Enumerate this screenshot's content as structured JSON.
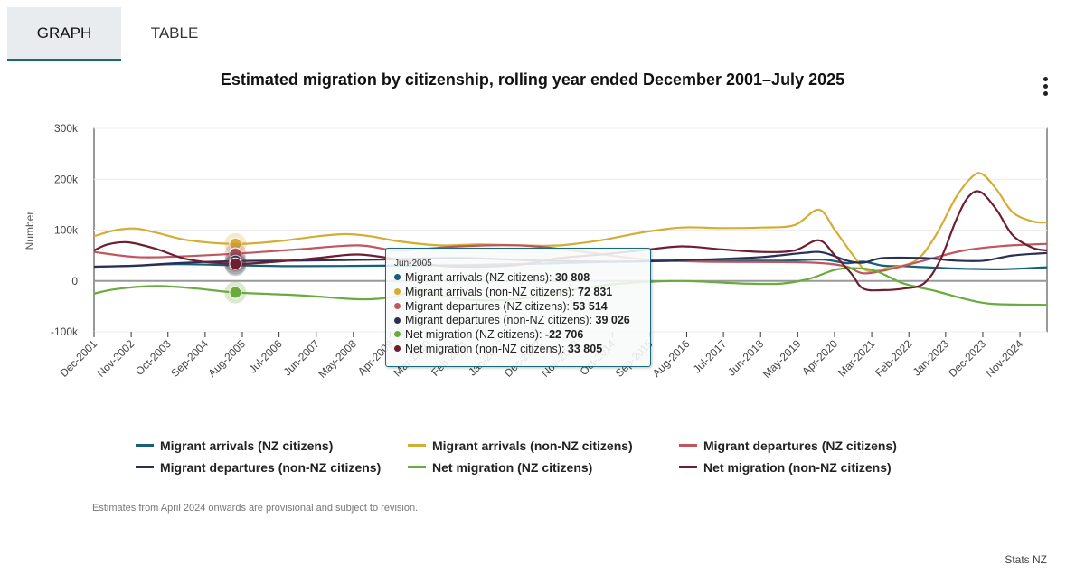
{
  "tabs": [
    {
      "label": "GRAPH",
      "active": true
    },
    {
      "label": "TABLE",
      "active": false
    }
  ],
  "menu_icon": "more-vertical-icon",
  "note": "Estimates from April 2024 onwards are provisional and subject to revision.",
  "credit": "Stats NZ",
  "tooltip": {
    "header": "Jun-2005",
    "rows": [
      {
        "label": "Migrant arrivals (NZ citizens): ",
        "value": "30 808",
        "color": "#17607a"
      },
      {
        "label": "Migrant arrivals (non-NZ citizens): ",
        "value": "72 831",
        "color": "#d4ad35"
      },
      {
        "label": "Migrant departures (NZ citizens): ",
        "value": "53 514",
        "color": "#c0565e"
      },
      {
        "label": "Migrant departures (non-NZ citizens): ",
        "value": "39 026",
        "color": "#2a2f55"
      },
      {
        "label": "Net migration (NZ citizens): ",
        "value": "-22 706",
        "color": "#6aab3d"
      },
      {
        "label": "Net migration (non-NZ citizens): ",
        "value": "33 805",
        "color": "#6e1e2e"
      }
    ]
  },
  "chart_data": {
    "type": "line",
    "title": "Estimated migration by citizenship, rolling year ended December 2001–July 2025",
    "xlabel": "",
    "ylabel": "Number",
    "ylim": [
      -100000,
      300000
    ],
    "yticks": [
      -100000,
      0,
      100000,
      200000,
      300000
    ],
    "ytick_labels": [
      "-100k",
      "0",
      "100k",
      "200k",
      "300k"
    ],
    "x_range": [
      2001.96,
      2025.55
    ],
    "xticks": [
      2001.96,
      2002.88,
      2003.79,
      2004.71,
      2005.63,
      2006.54,
      2007.46,
      2008.38,
      2009.29,
      2010.21,
      2011.13,
      2012.04,
      2012.96,
      2013.88,
      2014.79,
      2015.71,
      2016.63,
      2017.54,
      2018.46,
      2019.38,
      2020.29,
      2021.21,
      2022.13,
      2023.04,
      2023.96,
      2024.88
    ],
    "xtick_labels": [
      "Dec-2001",
      "Nov-2002",
      "Oct-2003",
      "Sep-2004",
      "Aug-2005",
      "Jul-2006",
      "Jun-2007",
      "May-2008",
      "Apr-2009",
      "Mar-2010",
      "Feb-2011",
      "Jan-2012",
      "Dec-2012",
      "Nov-2013",
      "Oct-2014",
      "Sep-2015",
      "Aug-2016",
      "Jul-2017",
      "Jun-2018",
      "May-2019",
      "Apr-2020",
      "Mar-2021",
      "Feb-2022",
      "Jan-2023",
      "Dec-2023",
      "Nov-2024"
    ],
    "highlight_x": 2005.46,
    "series": [
      {
        "name": "Migrant arrivals (NZ citizens)",
        "color": "#17607a",
        "x": [
          2001.96,
          2003,
          2004,
          2005.46,
          2007,
          2009,
          2011,
          2013,
          2015,
          2017,
          2019,
          2020,
          2020.6,
          2021.0,
          2021.5,
          2022,
          2022.8,
          2023.5,
          2024.5,
          2025.55
        ],
        "y": [
          28000,
          30000,
          33000,
          30808,
          29000,
          30000,
          31000,
          34000,
          38000,
          40000,
          40000,
          42000,
          35000,
          38000,
          30000,
          29000,
          26000,
          24000,
          23000,
          27000
        ]
      },
      {
        "name": "Migrant arrivals (non-NZ citizens)",
        "color": "#d4ad35",
        "x": [
          2001.96,
          2002.5,
          2003,
          2003.5,
          2004.3,
          2005.46,
          2006.5,
          2007.5,
          2008.2,
          2008.8,
          2009.5,
          2010.5,
          2011.5,
          2012.5,
          2013.5,
          2014.5,
          2015.5,
          2016.5,
          2017.5,
          2018.5,
          2019.3,
          2019.9,
          2020.3,
          2020.8,
          2021.1,
          2021.6,
          2022.3,
          2022.8,
          2023.3,
          2023.7,
          2023.95,
          2024.3,
          2024.7,
          2025.2,
          2025.55
        ],
        "y": [
          88000,
          100000,
          103000,
          95000,
          80000,
          72831,
          78000,
          88000,
          92000,
          88000,
          78000,
          70000,
          72000,
          70000,
          70000,
          80000,
          95000,
          105000,
          104000,
          105000,
          110000,
          140000,
          100000,
          45000,
          20000,
          25000,
          40000,
          90000,
          165000,
          205000,
          210000,
          180000,
          135000,
          117000,
          115000
        ]
      },
      {
        "name": "Migrant departures (NZ citizens)",
        "color": "#c0565e",
        "x": [
          2001.96,
          2003,
          2004,
          2005.46,
          2007,
          2008.5,
          2009.5,
          2011,
          2012.5,
          2014,
          2015.5,
          2017,
          2019,
          2020,
          2020.6,
          2021,
          2021.6,
          2022.5,
          2023.5,
          2024.5,
          2025.55
        ],
        "y": [
          57000,
          47000,
          48000,
          53514,
          62000,
          70000,
          60000,
          68000,
          70000,
          58000,
          43000,
          38000,
          37000,
          35000,
          28000,
          15000,
          22000,
          40000,
          60000,
          69000,
          73000
        ]
      },
      {
        "name": "Migrant departures (non-NZ citizens)",
        "color": "#2a2f55",
        "x": [
          2001.96,
          2003,
          2004,
          2005.46,
          2007,
          2009,
          2011,
          2013,
          2015,
          2017,
          2018.5,
          2019.5,
          2020,
          2020.6,
          2021,
          2021.5,
          2022.5,
          2023.3,
          2024,
          2024.7,
          2025.55
        ],
        "y": [
          28000,
          30000,
          35000,
          39026,
          40000,
          42000,
          45000,
          40000,
          38000,
          42000,
          47000,
          55000,
          56000,
          40000,
          36000,
          45000,
          45000,
          40000,
          40000,
          50000,
          55000
        ]
      },
      {
        "name": "Net migration (NZ citizens)",
        "color": "#6aab3d",
        "x": [
          2001.96,
          2002.5,
          2003.5,
          2004.5,
          2005.46,
          2007,
          2008.5,
          2009.3,
          2010,
          2011,
          2012,
          2013,
          2014,
          2015,
          2016.5,
          2018,
          2019,
          2019.7,
          2020.3,
          2020.8,
          2021.3,
          2022,
          2022.8,
          2023.5,
          2024.2,
          2025.55
        ],
        "y": [
          -25000,
          -16000,
          -10000,
          -15000,
          -22706,
          -28000,
          -36000,
          -32000,
          -20000,
          -35000,
          -38000,
          -30000,
          -15000,
          -5000,
          0,
          -5000,
          -5000,
          5000,
          22000,
          25000,
          20000,
          -5000,
          -20000,
          -35000,
          -45000,
          -47000
        ]
      },
      {
        "name": "Net migration (non-NZ citizens)",
        "color": "#6e1e2e",
        "x": [
          2001.96,
          2002.3,
          2002.8,
          2003.5,
          2004.3,
          2005.46,
          2006.5,
          2007.5,
          2008.5,
          2009.5,
          2010.5,
          2011.5,
          2012.5,
          2013.5,
          2014.5,
          2015.5,
          2016.5,
          2017.5,
          2018.5,
          2019.3,
          2019.9,
          2020.3,
          2020.7,
          2021.0,
          2021.5,
          2022.0,
          2022.5,
          2022.9,
          2023.3,
          2023.6,
          2023.9,
          2024.3,
          2024.7,
          2025.2,
          2025.55
        ],
        "y": [
          60000,
          72000,
          76000,
          63000,
          42000,
          33805,
          38000,
          45000,
          52000,
          42000,
          30000,
          28000,
          32000,
          45000,
          52000,
          60000,
          68000,
          62000,
          57000,
          60000,
          80000,
          50000,
          15000,
          -15000,
          -18000,
          -15000,
          -5000,
          40000,
          120000,
          165000,
          175000,
          140000,
          90000,
          65000,
          60000
        ]
      }
    ]
  }
}
